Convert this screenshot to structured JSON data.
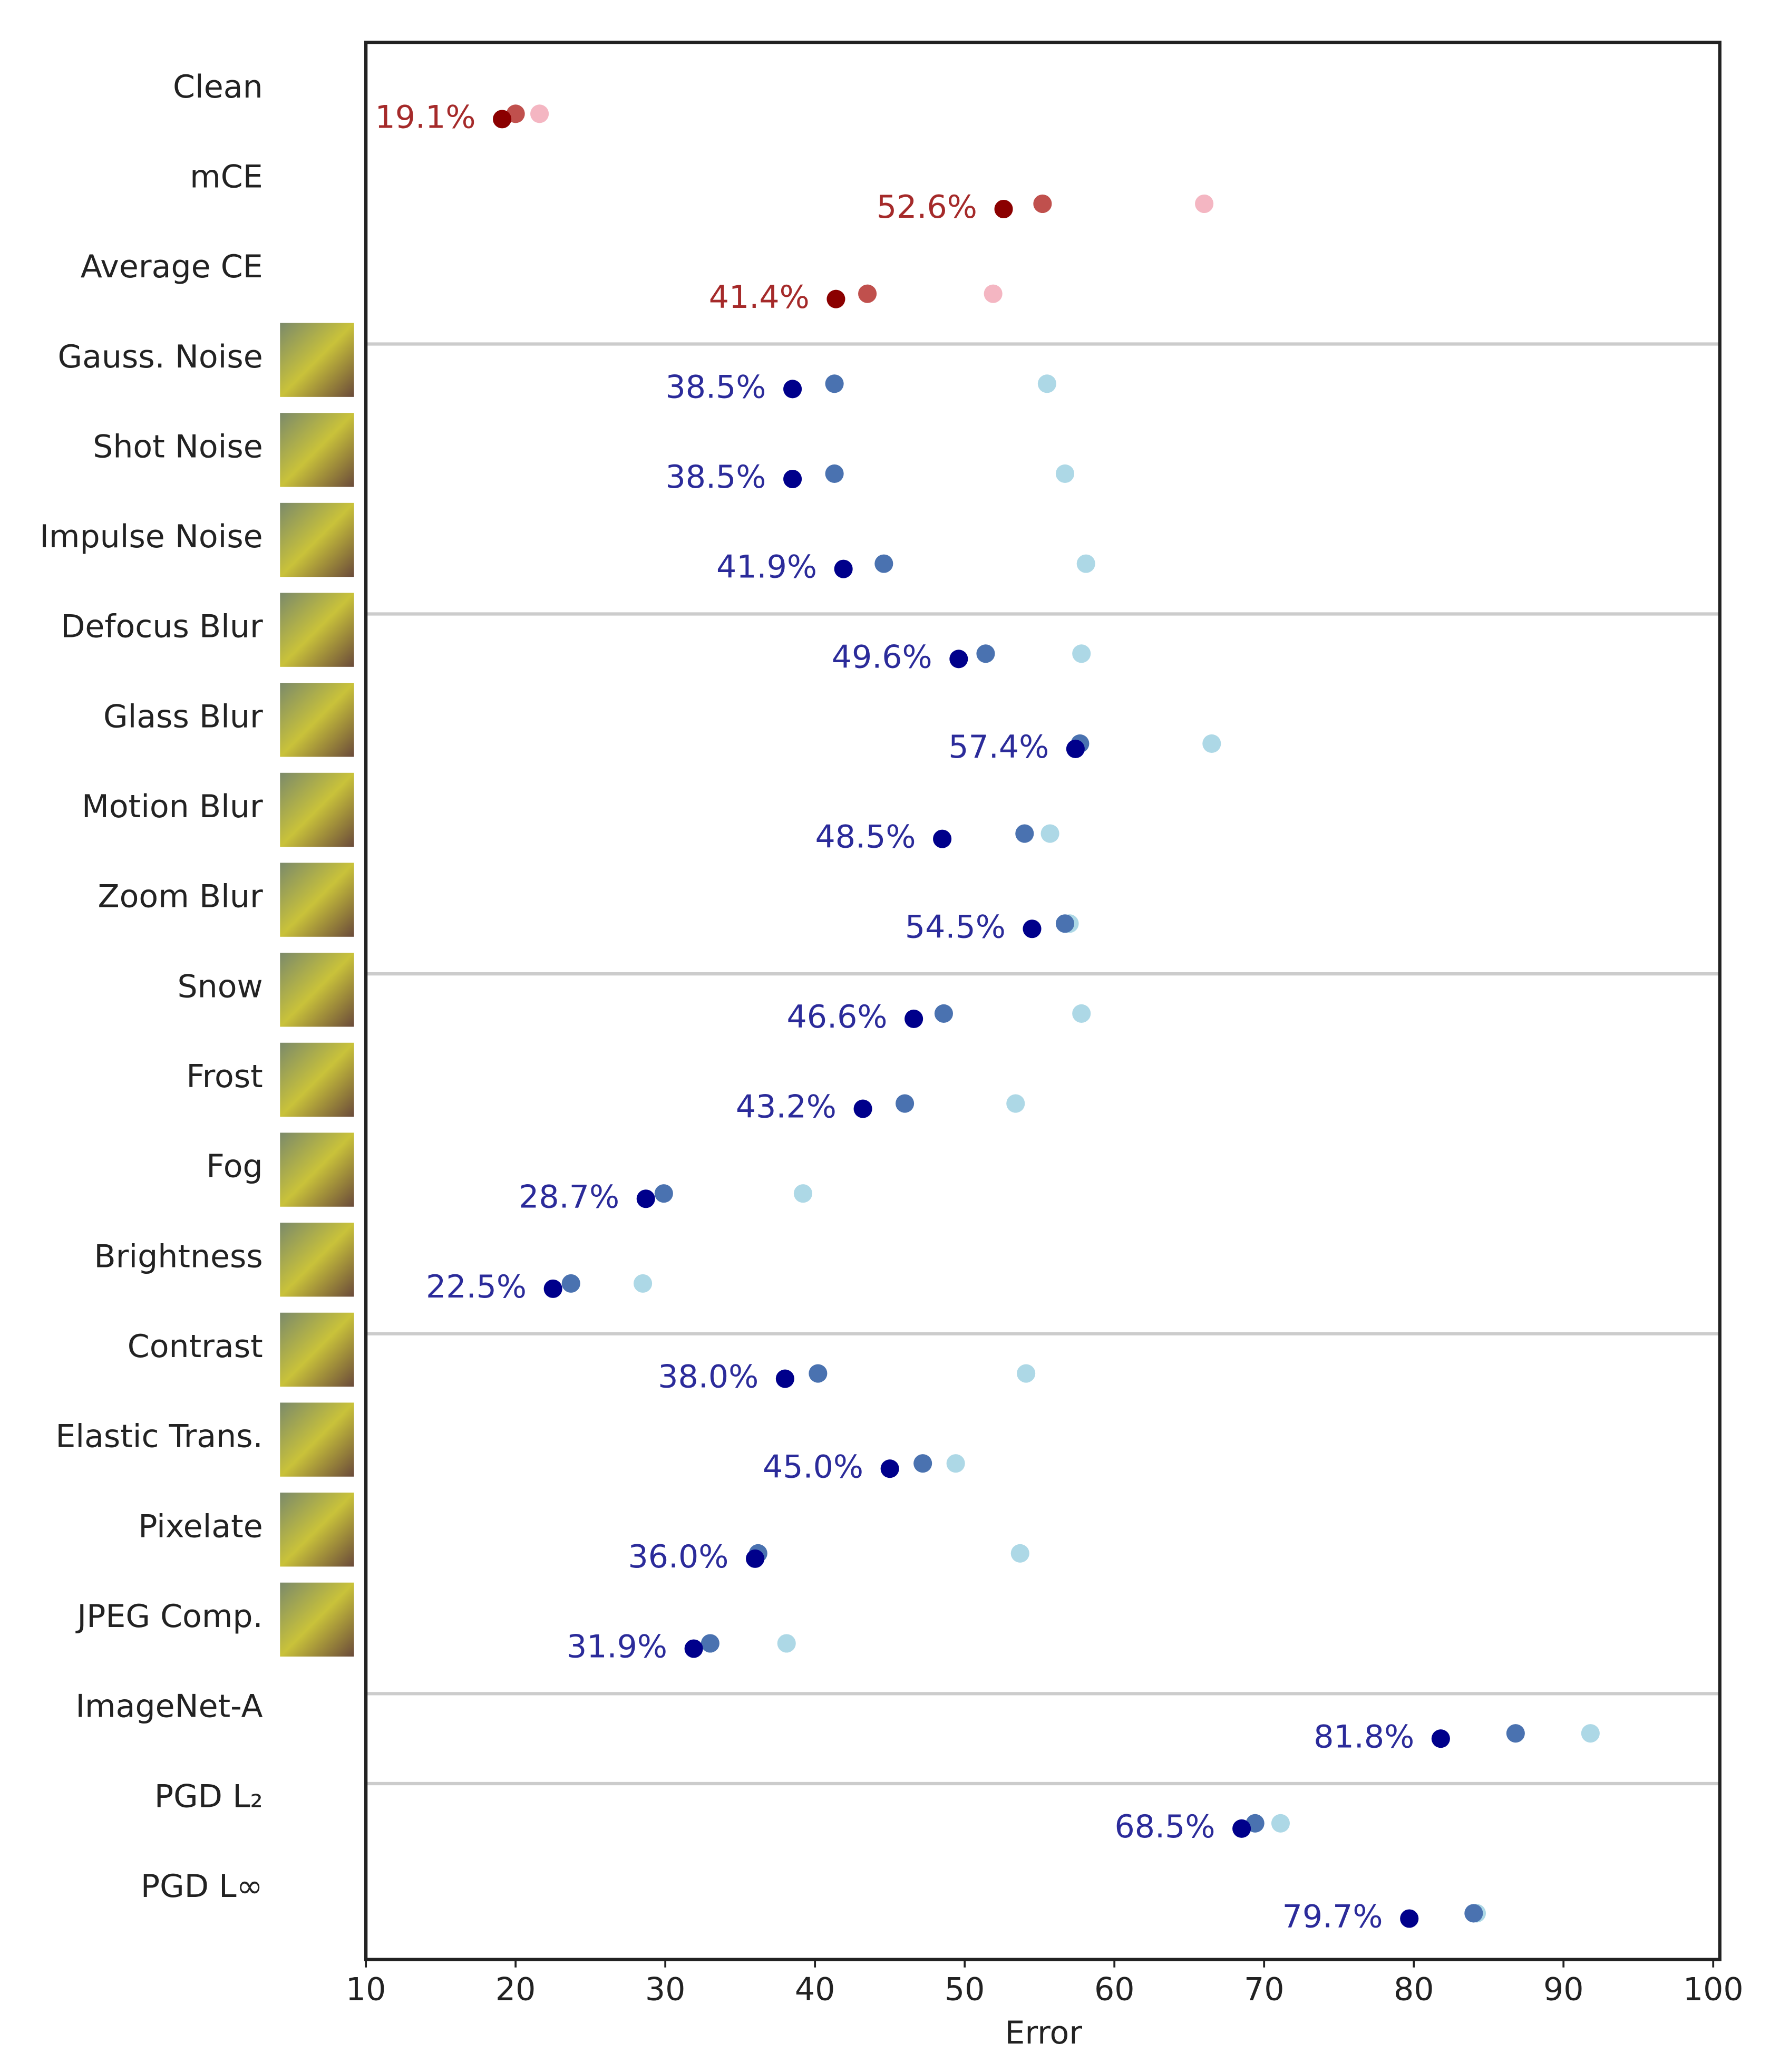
{
  "chart_data": {
    "type": "dot",
    "xlabel": "Error",
    "categories": [
      "Clean",
      "mCE",
      "Average CE",
      "Gauss. Noise",
      "Shot Noise",
      "Impulse Noise",
      "Defocus Blur",
      "Glass Blur",
      "Motion Blur",
      "Zoom Blur",
      "Snow",
      "Frost",
      "Fog",
      "Brightness",
      "Contrast",
      "Elastic Trans.",
      "Pixelate",
      "JPEG Comp.",
      "ImageNet-A",
      "PGD L₂",
      "PGD L∞"
    ],
    "series": [
      {
        "colors": [
          "#8b0000",
          "#8b0000",
          "#8b0000",
          "#00008b",
          "#00008b",
          "#00008b",
          "#00008b",
          "#00008b",
          "#00008b",
          "#00008b",
          "#00008b",
          "#00008b",
          "#00008b",
          "#00008b",
          "#00008b",
          "#00008b",
          "#00008b",
          "#00008b",
          "#00008b",
          "#00008b",
          "#00008b"
        ],
        "values": [
          19.1,
          52.6,
          41.4,
          38.5,
          38.5,
          41.9,
          49.6,
          57.4,
          48.5,
          54.5,
          46.6,
          43.2,
          28.7,
          22.5,
          38.0,
          45.0,
          36.0,
          31.9,
          81.8,
          68.5,
          79.7
        ],
        "value_labels": [
          "19.1%",
          "52.6%",
          "41.4%",
          "38.5%",
          "38.5%",
          "41.9%",
          "49.6%",
          "57.4%",
          "48.5%",
          "54.5%",
          "46.6%",
          "43.2%",
          "28.7%",
          "22.5%",
          "38.0%",
          "45.0%",
          "36.0%",
          "31.9%",
          "81.8%",
          "68.5%",
          "79.7%"
        ],
        "label_colors": [
          "#a52a2a",
          "#a52a2a",
          "#a52a2a",
          "#2b2b9a",
          "#2b2b9a",
          "#2b2b9a",
          "#2b2b9a",
          "#2b2b9a",
          "#2b2b9a",
          "#2b2b9a",
          "#2b2b9a",
          "#2b2b9a",
          "#2b2b9a",
          "#2b2b9a",
          "#2b2b9a",
          "#2b2b9a",
          "#2b2b9a",
          "#2b2b9a",
          "#2b2b9a",
          "#2b2b9a",
          "#2b2b9a"
        ]
      },
      {
        "colors": [
          "#c0504d",
          "#c0504d",
          "#c0504d",
          "#4a72b0",
          "#4a72b0",
          "#4a72b0",
          "#4a72b0",
          "#4a72b0",
          "#4a72b0",
          "#4a72b0",
          "#4a72b0",
          "#4a72b0",
          "#4a72b0",
          "#4a72b0",
          "#4a72b0",
          "#4a72b0",
          "#4a72b0",
          "#4a72b0",
          "#4a72b0",
          "#4a72b0",
          "#4a72b0"
        ],
        "values": [
          20.0,
          55.2,
          43.5,
          41.3,
          41.3,
          44.6,
          51.4,
          57.7,
          54.0,
          56.7,
          48.6,
          46.0,
          29.9,
          23.7,
          40.2,
          47.2,
          36.2,
          33.0,
          86.8,
          69.4,
          84.0
        ]
      },
      {
        "colors": [
          "#f4b6c2",
          "#f4b6c2",
          "#f4b6c2",
          "#add8e6",
          "#add8e6",
          "#add8e6",
          "#add8e6",
          "#add8e6",
          "#add8e6",
          "#add8e6",
          "#add8e6",
          "#add8e6",
          "#add8e6",
          "#add8e6",
          "#add8e6",
          "#add8e6",
          "#add8e6",
          "#add8e6",
          "#add8e6",
          "#add8e6",
          "#add8e6"
        ],
        "values": [
          21.6,
          66.0,
          51.9,
          55.5,
          56.7,
          58.1,
          57.8,
          66.5,
          55.7,
          57.0,
          57.8,
          53.4,
          39.2,
          28.5,
          54.1,
          49.4,
          53.7,
          38.1,
          91.8,
          71.1,
          84.2
        ]
      }
    ],
    "separators_after": [
      2,
      5,
      9,
      13,
      17,
      18
    ],
    "thumbnails": [
      3,
      4,
      5,
      6,
      7,
      8,
      9,
      10,
      11,
      12,
      13,
      14,
      15,
      16,
      17
    ],
    "xlim": [
      10,
      100
    ],
    "xticks": [
      10,
      20,
      30,
      40,
      50,
      60,
      70,
      80,
      90,
      100
    ]
  }
}
